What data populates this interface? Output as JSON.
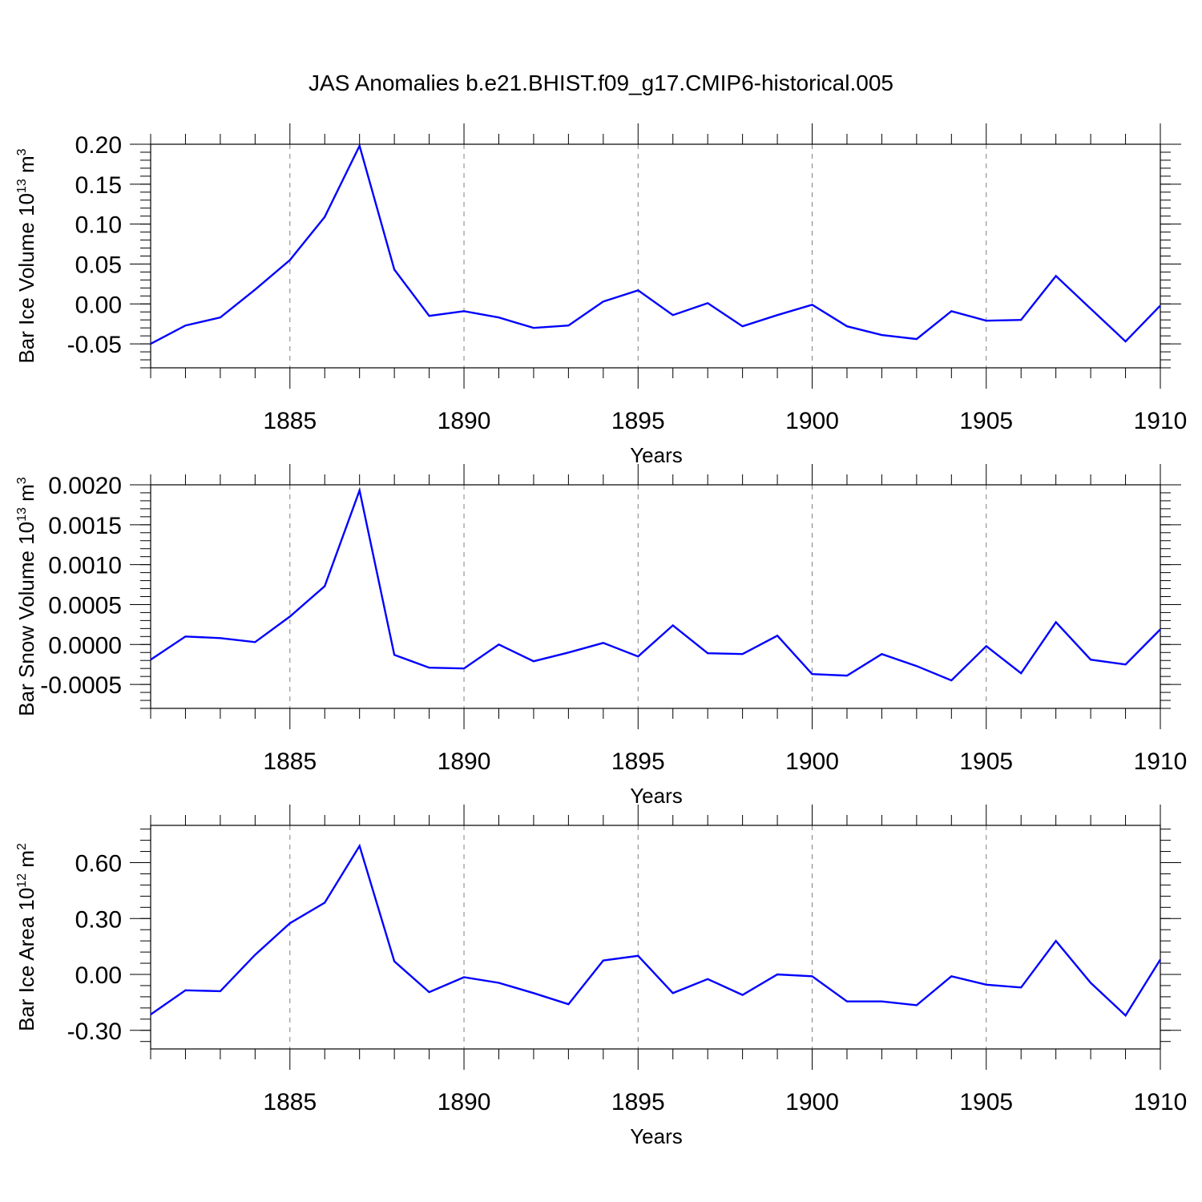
{
  "title": "JAS Anomalies b.e21.BHIST.f09_g17.CMIP6-historical.005",
  "chart_data": [
    {
      "type": "line",
      "ylabel": "Bar Ice Volume 10",
      "ylabel_sup": "13",
      "ylabel_unit": " m",
      "ylabel_unit_sup": "3",
      "xlabel": "Years",
      "xlim": [
        1881,
        1910
      ],
      "ylim": [
        -0.08,
        0.2
      ],
      "xticks": [
        1885,
        1890,
        1895,
        1900,
        1905,
        1910
      ],
      "xtick_labels": [
        "1885",
        "1890",
        "1895",
        "1900",
        "1905",
        "1910"
      ],
      "yticks": [
        -0.05,
        0.0,
        0.05,
        0.1,
        0.15,
        0.2
      ],
      "ytick_labels": [
        "-0.05",
        "0.00",
        "0.05",
        "0.10",
        "0.15",
        "0.20"
      ],
      "grid": "dashed vertical at major x ticks",
      "series": [
        {
          "color": "#0000ff",
          "x": [
            1881,
            1882,
            1883,
            1884,
            1885,
            1886,
            1887,
            1888,
            1889,
            1890,
            1891,
            1892,
            1893,
            1894,
            1895,
            1896,
            1897,
            1898,
            1899,
            1900,
            1901,
            1902,
            1903,
            1904,
            1905,
            1906,
            1907,
            1908,
            1909,
            1910
          ],
          "y": [
            -0.05,
            -0.027,
            -0.017,
            0.018,
            0.055,
            0.109,
            0.198,
            0.043,
            -0.015,
            -0.009,
            -0.017,
            -0.03,
            -0.027,
            0.003,
            0.017,
            -0.014,
            0.001,
            -0.028,
            -0.014,
            -0.001,
            -0.028,
            -0.039,
            -0.044,
            -0.009,
            -0.021,
            -0.02,
            0.035,
            -0.006,
            -0.047,
            -0.002
          ]
        }
      ]
    },
    {
      "type": "line",
      "ylabel": "Bar Snow Volume 10",
      "ylabel_sup": "13",
      "ylabel_unit": " m",
      "ylabel_unit_sup": "3",
      "xlabel": "Years",
      "xlim": [
        1881,
        1910
      ],
      "ylim": [
        -0.0008,
        0.002
      ],
      "xticks": [
        1885,
        1890,
        1895,
        1900,
        1905,
        1910
      ],
      "xtick_labels": [
        "1885",
        "1890",
        "1895",
        "1900",
        "1905",
        "1910"
      ],
      "yticks": [
        -0.0005,
        0.0,
        0.0005,
        0.001,
        0.0015,
        0.002
      ],
      "ytick_labels": [
        "-0.0005",
        "0.0000",
        "0.0005",
        "0.0010",
        "0.0015",
        "0.0020"
      ],
      "grid": "dashed vertical at major x ticks",
      "series": [
        {
          "color": "#0000ff",
          "x": [
            1881,
            1882,
            1883,
            1884,
            1885,
            1886,
            1887,
            1888,
            1889,
            1890,
            1891,
            1892,
            1893,
            1894,
            1895,
            1896,
            1897,
            1898,
            1899,
            1900,
            1901,
            1902,
            1903,
            1904,
            1905,
            1906,
            1907,
            1908,
            1909,
            1910
          ],
          "y": [
            -0.00019,
            0.0001,
            8e-05,
            3e-05,
            0.00035,
            0.00073,
            0.00193,
            -0.00013,
            -0.00029,
            -0.0003,
            0.0,
            -0.00021,
            -0.0001,
            2e-05,
            -0.00015,
            0.00024,
            -0.00011,
            -0.00012,
            0.00011,
            -0.00037,
            -0.00039,
            -0.00012,
            -0.00027,
            -0.00045,
            -2e-05,
            -0.00036,
            0.00028,
            -0.00019,
            -0.00025,
            0.00019
          ]
        }
      ]
    },
    {
      "type": "line",
      "ylabel": "Bar Ice Area 10",
      "ylabel_sup": "12",
      "ylabel_unit": " m",
      "ylabel_unit_sup": "2",
      "xlabel": "Years",
      "xlim": [
        1881,
        1910
      ],
      "ylim": [
        -0.4,
        0.8
      ],
      "xticks": [
        1885,
        1890,
        1895,
        1900,
        1905,
        1910
      ],
      "xtick_labels": [
        "1885",
        "1890",
        "1895",
        "1900",
        "1905",
        "1910"
      ],
      "yticks": [
        -0.3,
        0.0,
        0.3,
        0.6
      ],
      "ytick_labels": [
        "-0.30",
        "0.00",
        "0.30",
        "0.60"
      ],
      "grid": "dashed vertical at major x ticks",
      "series": [
        {
          "color": "#0000ff",
          "x": [
            1881,
            1882,
            1883,
            1884,
            1885,
            1886,
            1887,
            1888,
            1889,
            1890,
            1891,
            1892,
            1893,
            1894,
            1895,
            1896,
            1897,
            1898,
            1899,
            1900,
            1901,
            1902,
            1903,
            1904,
            1905,
            1906,
            1907,
            1908,
            1909,
            1910
          ],
          "y": [
            -0.215,
            -0.085,
            -0.09,
            0.105,
            0.275,
            0.385,
            0.69,
            0.07,
            -0.095,
            -0.015,
            -0.045,
            -0.1,
            -0.16,
            0.075,
            0.1,
            -0.1,
            -0.025,
            -0.11,
            0.0,
            -0.01,
            -0.145,
            -0.145,
            -0.165,
            -0.01,
            -0.055,
            -0.07,
            0.18,
            -0.045,
            -0.22,
            0.08
          ]
        }
      ]
    }
  ]
}
